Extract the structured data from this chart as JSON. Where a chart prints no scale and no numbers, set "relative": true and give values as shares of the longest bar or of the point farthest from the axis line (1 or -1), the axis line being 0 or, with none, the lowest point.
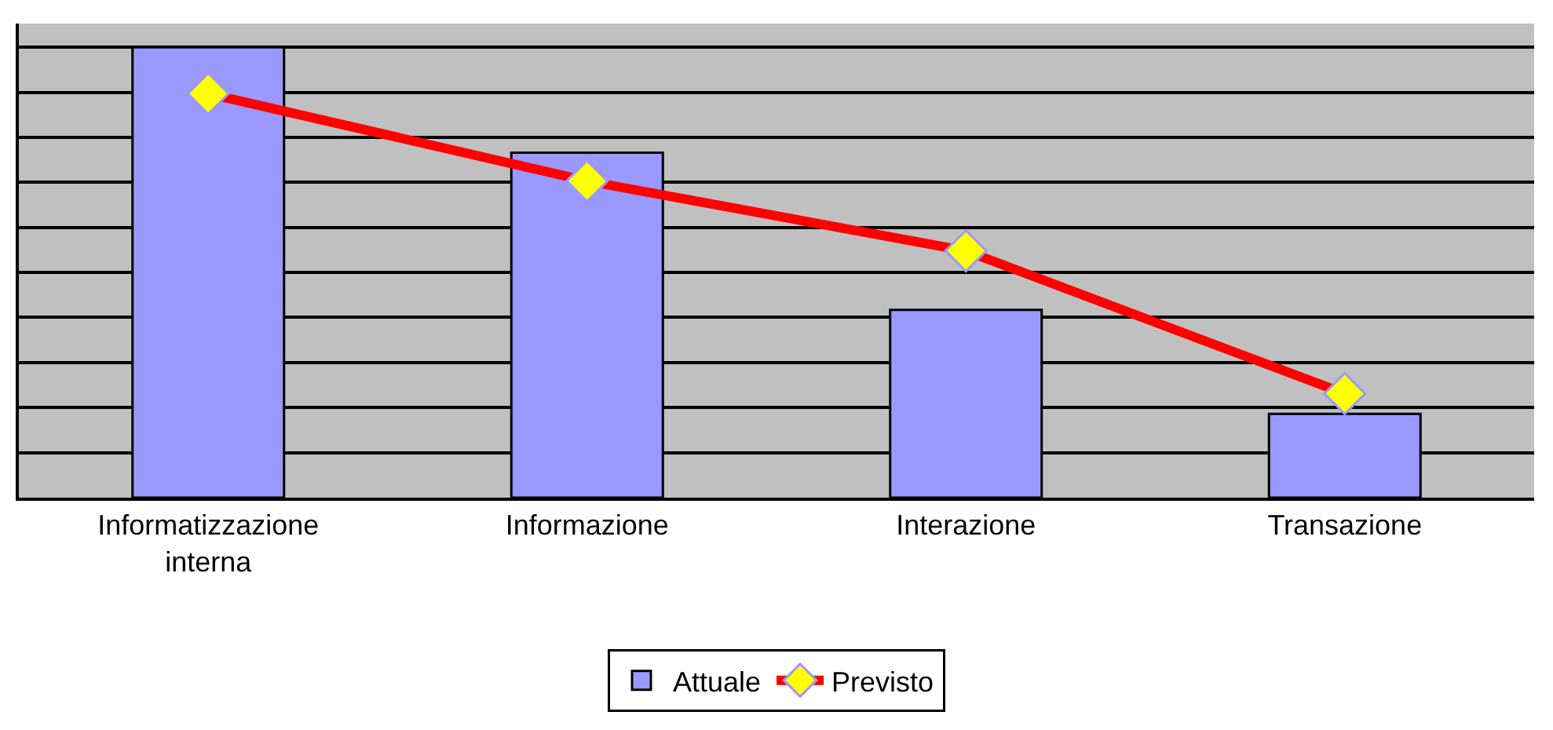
{
  "chart_data": {
    "type": "bar",
    "relative": true,
    "categories": [
      "Informatizzazione interna",
      "Informazione",
      "Interazione",
      "Transazione"
    ],
    "series": [
      {
        "name": "Attuale",
        "color": "#9999ff",
        "values": [
          1,
          0.766,
          0.417,
          0.186
        ]
      },
      {
        "name": "Previsto",
        "type": "line",
        "color": "#ff0000",
        "marker": "diamond",
        "values": [
          0.897,
          0.703,
          0.548,
          0.231
        ]
      }
    ],
    "grid": "y",
    "legend": "bottom"
  }
}
